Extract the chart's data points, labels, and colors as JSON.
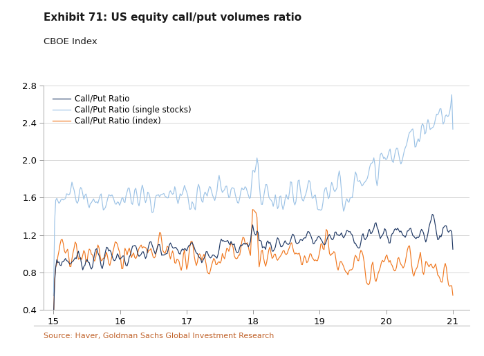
{
  "title": "Exhibit 71: US equity call/put volumes ratio",
  "subtitle": "CBOE Index",
  "source": "Source: Haver, Goldman Sachs Global Investment Research",
  "legend": [
    "Call/Put Ratio",
    "Call/Put Ratio (single stocks)",
    "Call/Put Ratio (index)"
  ],
  "colors": {
    "call_put": "#1f3864",
    "single_stocks": "#9dc3e6",
    "index": "#f07820"
  },
  "ylim": [
    0.4,
    2.8
  ],
  "yticks": [
    0.4,
    0.8,
    1.2,
    1.6,
    2.0,
    2.4,
    2.8
  ],
  "xlim": [
    14.85,
    21.25
  ],
  "xticks": [
    15,
    16,
    17,
    18,
    19,
    20,
    21
  ],
  "linewidth": 0.85,
  "title_fontsize": 11,
  "subtitle_fontsize": 9.5,
  "tick_fontsize": 9.5,
  "legend_fontsize": 8.5,
  "source_fontsize": 8,
  "background_color": "#ffffff",
  "grid_color": "#d0d0d0"
}
